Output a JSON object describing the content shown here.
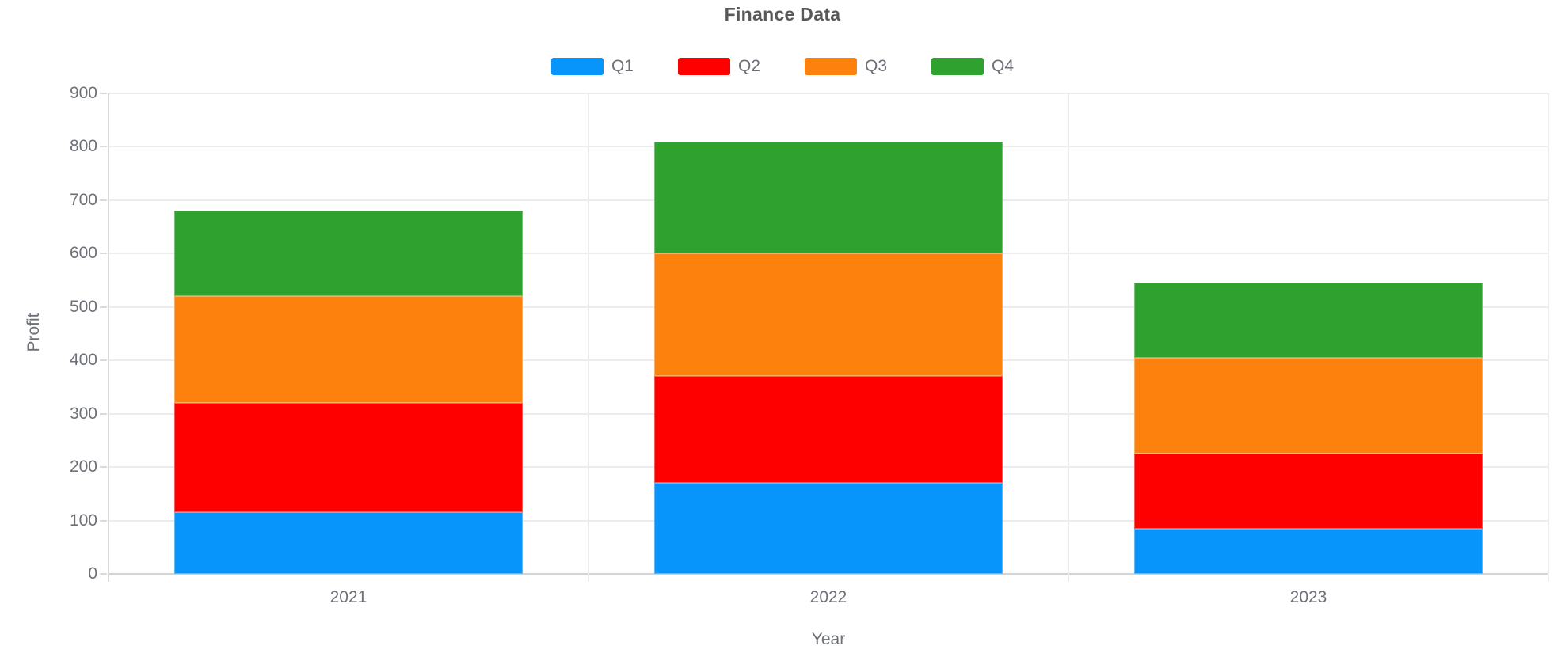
{
  "chart_data": {
    "type": "bar",
    "stacked": true,
    "title": "Finance Data",
    "xlabel": "Year",
    "ylabel": "Profit",
    "categories": [
      "2021",
      "2022",
      "2023"
    ],
    "series": [
      {
        "name": "Q1",
        "color": "#0795FB",
        "values": [
          115,
          170,
          85
        ]
      },
      {
        "name": "Q2",
        "color": "#FE0000",
        "values": [
          205,
          200,
          140
        ]
      },
      {
        "name": "Q3",
        "color": "#FC820D",
        "values": [
          200,
          230,
          180
        ]
      },
      {
        "name": "Q4",
        "color": "#2EA12E",
        "values": [
          160,
          210,
          140
        ]
      }
    ],
    "ylim": [
      0,
      900
    ],
    "yticks": [
      0,
      100,
      200,
      300,
      400,
      500,
      600,
      700,
      800,
      900
    ],
    "grid": true,
    "legend_position": "top"
  }
}
